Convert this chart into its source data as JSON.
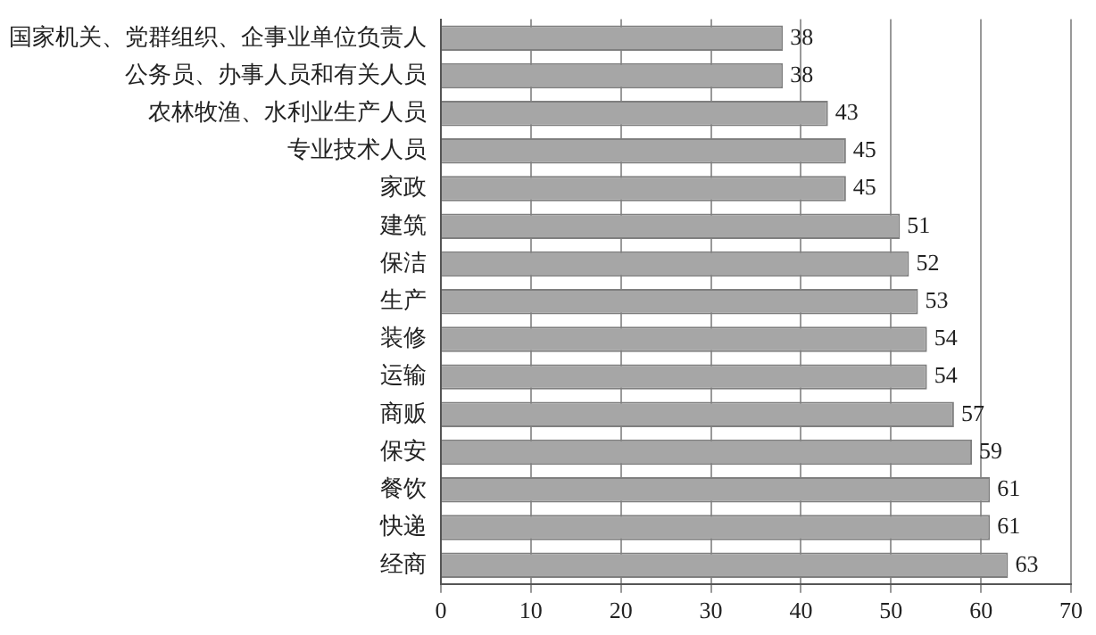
{
  "chart_data": {
    "type": "bar",
    "orientation": "horizontal",
    "categories": [
      "国家机关、党群组织、企事业单位负责人",
      "公务员、办事人员和有关人员",
      "农林牧渔、水利业生产人员",
      "专业技术人员",
      "家政",
      "建筑",
      "保洁",
      "生产",
      "装修",
      "运输",
      "商贩",
      "保安",
      "餐饮",
      "快递",
      "经商"
    ],
    "values": [
      38,
      38,
      43,
      45,
      45,
      51,
      52,
      53,
      54,
      54,
      57,
      59,
      61,
      61,
      63
    ],
    "color": "#a6a6a6",
    "xlim": [
      0,
      70
    ],
    "xticks": [
      0,
      10,
      20,
      30,
      40,
      50,
      60,
      70
    ],
    "grid": "x",
    "data_labels": true,
    "legend": false
  }
}
